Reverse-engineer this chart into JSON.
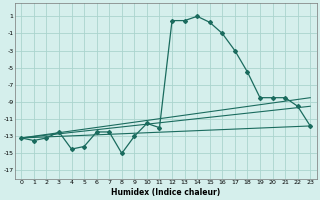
{
  "xlabel": "Humidex (Indice chaleur)",
  "bg_color": "#d5efec",
  "grid_color": "#aad4ce",
  "line_color": "#1a6b5e",
  "xlim": [
    -0.5,
    23.5
  ],
  "ylim": [
    -18,
    2.5
  ],
  "yticks": [
    1,
    -1,
    -3,
    -5,
    -7,
    -9,
    -11,
    -13,
    -15,
    -17
  ],
  "xticks": [
    0,
    1,
    2,
    3,
    4,
    5,
    6,
    7,
    8,
    9,
    10,
    11,
    12,
    13,
    14,
    15,
    16,
    17,
    18,
    19,
    20,
    21,
    22,
    23
  ],
  "main_series": {
    "x": [
      0,
      1,
      2,
      3,
      4,
      5,
      6,
      7,
      8,
      9,
      10,
      11,
      12,
      13,
      14,
      15,
      16,
      17,
      18,
      19,
      20,
      21,
      22,
      23
    ],
    "y": [
      -13.2,
      -13.5,
      -13.2,
      -12.5,
      -14.5,
      -14.2,
      -12.5,
      -12.5,
      -15.0,
      -13.0,
      -11.5,
      -12.0,
      0.5,
      0.5,
      1.0,
      0.3,
      -1.0,
      -3.0,
      -5.5,
      -8.5,
      -8.5,
      -8.5,
      -9.5,
      -11.8
    ]
  },
  "linear_series": [
    {
      "x": [
        0,
        23
      ],
      "y": [
        -13.2,
        -11.8
      ]
    },
    {
      "x": [
        0,
        23
      ],
      "y": [
        -13.2,
        -9.5
      ]
    },
    {
      "x": [
        0,
        23
      ],
      "y": [
        -13.2,
        -8.5
      ]
    }
  ]
}
